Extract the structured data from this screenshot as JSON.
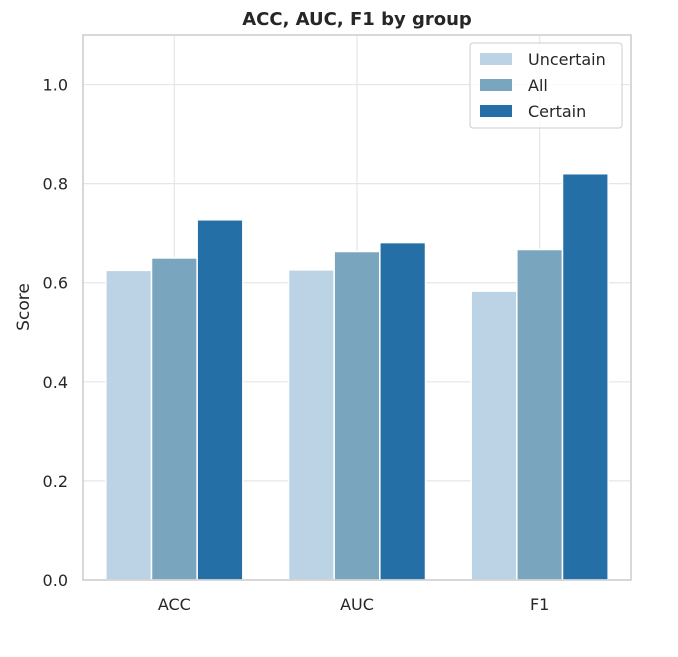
{
  "chart_data": {
    "type": "bar",
    "title": "ACC, AUC, F1 by group",
    "xlabel": "",
    "ylabel": "Score",
    "categories": [
      "ACC",
      "AUC",
      "F1"
    ],
    "series": [
      {
        "name": "Uncertain",
        "color": "#bcd3e6",
        "values": [
          0.625,
          0.626,
          0.583
        ]
      },
      {
        "name": "All",
        "color": "#79a5bf",
        "values": [
          0.65,
          0.663,
          0.667
        ]
      },
      {
        "name": "Certain",
        "color": "#2470a6",
        "values": [
          0.727,
          0.681,
          0.82
        ]
      }
    ],
    "ylim": [
      0,
      1.1
    ],
    "yticks": [
      0.0,
      0.2,
      0.4,
      0.6,
      0.8,
      1.0
    ],
    "ytick_labels": [
      "0.0",
      "0.2",
      "0.4",
      "0.6",
      "0.8",
      "1.0"
    ],
    "grid": true,
    "legend_position": "top-right"
  }
}
